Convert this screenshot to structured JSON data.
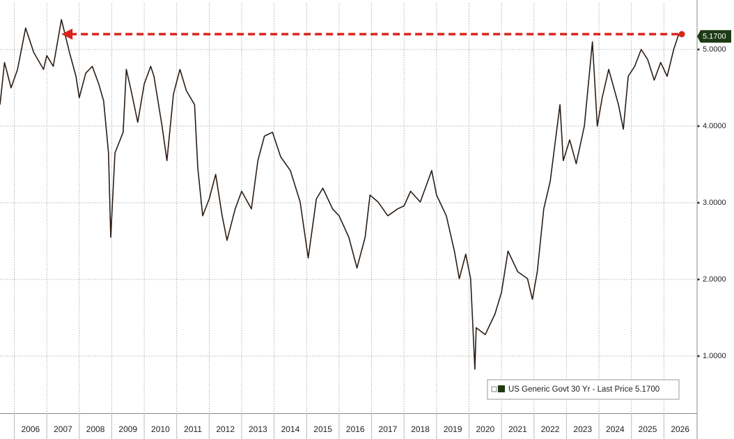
{
  "chart_data": {
    "type": "line",
    "x": [
      2005.56,
      2005.7,
      2005.9,
      2006.1,
      2006.35,
      2006.6,
      2006.9,
      2007.0,
      2007.2,
      2007.45,
      2007.7,
      2007.9,
      2008.0,
      2008.2,
      2008.4,
      2008.6,
      2008.75,
      2008.9,
      2008.97,
      2009.1,
      2009.35,
      2009.45,
      2009.6,
      2009.8,
      2010.0,
      2010.2,
      2010.3,
      2010.55,
      2010.7,
      2010.9,
      2011.1,
      2011.3,
      2011.55,
      2011.65,
      2011.8,
      2012.0,
      2012.2,
      2012.4,
      2012.55,
      2012.8,
      2013.0,
      2013.3,
      2013.5,
      2013.7,
      2013.95,
      2014.2,
      2014.5,
      2014.8,
      2015.05,
      2015.3,
      2015.5,
      2015.8,
      2016.0,
      2016.3,
      2016.55,
      2016.8,
      2016.95,
      2017.2,
      2017.5,
      2017.8,
      2018.0,
      2018.2,
      2018.5,
      2018.85,
      2019.0,
      2019.3,
      2019.55,
      2019.7,
      2019.9,
      2020.05,
      2020.18,
      2020.22,
      2020.5,
      2020.8,
      2021.0,
      2021.2,
      2021.5,
      2021.8,
      2021.95,
      2022.1,
      2022.3,
      2022.5,
      2022.8,
      2022.9,
      2023.1,
      2023.3,
      2023.55,
      2023.8,
      2023.95,
      2024.1,
      2024.3,
      2024.6,
      2024.75,
      2024.9,
      2025.1,
      2025.3,
      2025.5,
      2025.7,
      2025.9,
      2026.1,
      2026.3,
      2026.45,
      2026.55
    ],
    "series": [
      {
        "name": "US Generic Govt 30 Yr - Last Price 5.1700",
        "color": "#2b1d14",
        "values": [
          4.28,
          4.83,
          4.5,
          4.74,
          5.28,
          4.96,
          4.74,
          4.92,
          4.78,
          5.39,
          4.96,
          4.65,
          4.37,
          4.69,
          4.78,
          4.55,
          4.33,
          3.65,
          2.55,
          3.65,
          3.92,
          4.74,
          4.46,
          4.05,
          4.55,
          4.78,
          4.65,
          4.0,
          3.55,
          4.42,
          4.74,
          4.46,
          4.28,
          3.46,
          2.83,
          3.05,
          3.37,
          2.83,
          2.51,
          2.92,
          3.15,
          2.92,
          3.55,
          3.87,
          3.92,
          3.6,
          3.42,
          3.01,
          2.28,
          3.05,
          3.19,
          2.92,
          2.83,
          2.55,
          2.15,
          2.55,
          3.1,
          3.01,
          2.83,
          2.92,
          2.96,
          3.15,
          3.01,
          3.42,
          3.1,
          2.83,
          2.37,
          2.01,
          2.33,
          2.01,
          0.83,
          1.37,
          1.28,
          1.55,
          1.83,
          2.37,
          2.1,
          2.01,
          1.74,
          2.1,
          2.92,
          3.28,
          4.28,
          3.55,
          3.82,
          3.51,
          4.0,
          5.1,
          4.0,
          4.37,
          4.74,
          4.28,
          3.96,
          4.65,
          4.78,
          5.0,
          4.87,
          4.6,
          4.83,
          4.65,
          5.0,
          5.19,
          5.17
        ]
      }
    ],
    "last_price": {
      "value": 5.17,
      "label": "5.1700",
      "color": "#1e3a14"
    },
    "arrow": {
      "x": [
        2007.45,
        2026.55
      ],
      "y": 5.2,
      "color": "#d9241c"
    },
    "xlim": [
      2005.56,
      2027.0
    ],
    "ylim": [
      0.25,
      5.6
    ],
    "xticks": [
      2006,
      2007,
      2008,
      2009,
      2010,
      2011,
      2012,
      2013,
      2014,
      2015,
      2016,
      2017,
      2018,
      2019,
      2020,
      2021,
      2022,
      2023,
      2024,
      2025,
      2026
    ],
    "yticks": [
      {
        "value": 1,
        "label": "1.0000"
      },
      {
        "value": 2,
        "label": "2.0000"
      },
      {
        "value": 3,
        "label": "3.0000"
      },
      {
        "value": 4,
        "label": "4.0000"
      },
      {
        "value": 5,
        "label": "5.0000"
      }
    ],
    "grid": true
  }
}
